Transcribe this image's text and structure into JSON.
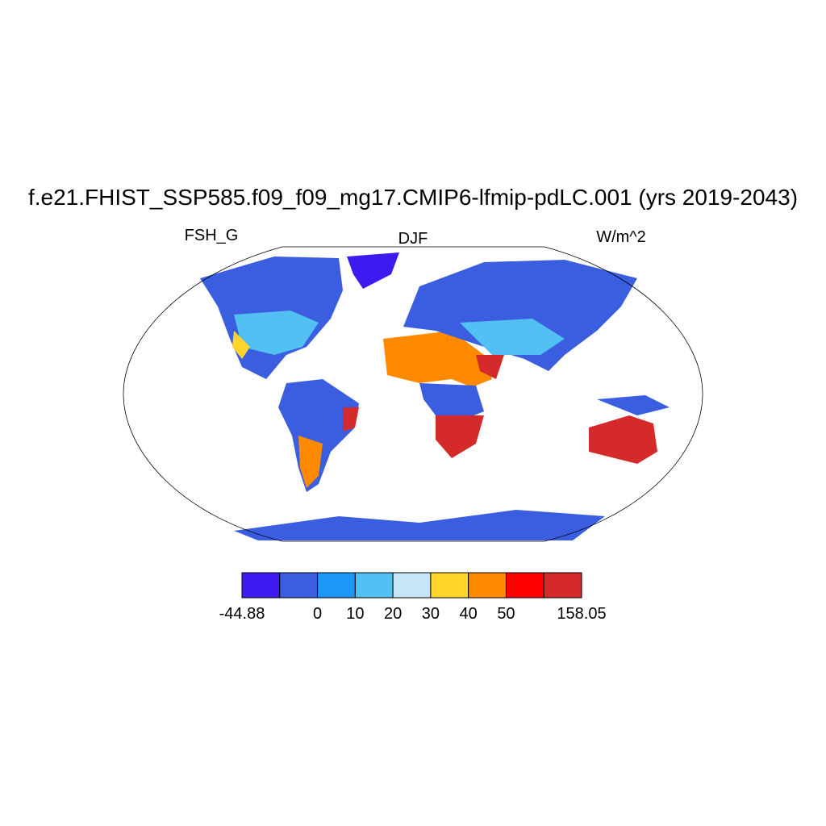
{
  "header": {
    "title": "f.e21.FHIST_SSP585.f09_f09_mg17.CMIP6-lfmip-pdLC.001 (yrs 2019-2043)",
    "left_label": "FSH_G",
    "center_label": "DJF",
    "right_label": "W/m^2"
  },
  "colorbar": {
    "colors": [
      "#3b1bf0",
      "#3b5ee0",
      "#1e96f7",
      "#52c0f2",
      "#c6e6f7",
      "#ffd52b",
      "#ff8a00",
      "#ff0000",
      "#d42a2a"
    ],
    "levels": [
      -44.88,
      null,
      0,
      10,
      20,
      30,
      40,
      50,
      null,
      158.05
    ]
  }
}
